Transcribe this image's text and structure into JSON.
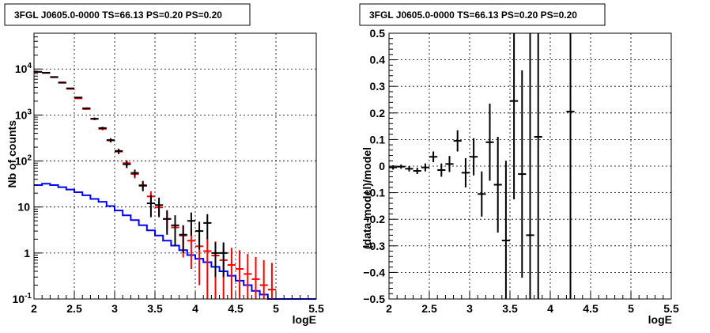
{
  "chart_data": [
    {
      "type": "scatter",
      "title": "3FGL J0605.0-0000 TS=66.13 PS=0.20 PS=0.20",
      "xlabel": "logE",
      "ylabel": "Nb of counts",
      "xlim": [
        2,
        5.5
      ],
      "ylim": [
        0.1,
        60000
      ],
      "yscale": "log",
      "grid": true,
      "x_ticks": [
        "2",
        "2.5",
        "3",
        "3.5",
        "4",
        "4.5",
        "5",
        "5.5"
      ],
      "y_ticks": [
        {
          "v": 0.1,
          "label": "10",
          "sup": "-1"
        },
        {
          "v": 1,
          "label": "1",
          "sup": ""
        },
        {
          "v": 10,
          "label": "10",
          "sup": ""
        },
        {
          "v": 100,
          "label": "10",
          "sup": "2"
        },
        {
          "v": 1000,
          "label": "10",
          "sup": "3"
        },
        {
          "v": 10000,
          "label": "10",
          "sup": "4"
        }
      ],
      "series": [
        {
          "kind": "steps",
          "color": "#0000ff",
          "bin_width": 0.1,
          "x": [
            2.05,
            2.15,
            2.25,
            2.35,
            2.45,
            2.55,
            2.65,
            2.75,
            2.85,
            2.95,
            3.05,
            3.15,
            3.25,
            3.35,
            3.45,
            3.55,
            3.65,
            3.75,
            3.85,
            3.95,
            4.05,
            4.15,
            4.25,
            4.35,
            4.45,
            4.55,
            4.65,
            4.75,
            4.85,
            4.95,
            5.05,
            5.15,
            5.25,
            5.35,
            5.45
          ],
          "y": [
            30,
            32,
            30,
            27,
            24,
            21,
            18,
            15,
            13,
            10.5,
            8.4,
            6.6,
            5.2,
            4.0,
            3.1,
            2.4,
            1.85,
            1.45,
            1.15,
            0.9,
            0.75,
            0.63,
            0.5,
            0.4,
            0.32,
            0.25,
            0.2,
            0.15,
            0.125,
            0.1,
            0.1,
            0.1,
            0.1,
            0.1,
            0.1
          ]
        },
        {
          "kind": "errorbars",
          "color": "#ff0000",
          "bin_width": 0.1,
          "x": [
            2.05,
            2.15,
            2.25,
            2.35,
            2.45,
            2.55,
            2.65,
            2.75,
            2.85,
            2.95,
            3.05,
            3.15,
            3.25,
            3.35,
            3.45,
            3.55,
            3.65,
            3.75,
            3.85,
            3.95,
            4.05,
            4.15,
            4.25,
            4.35,
            4.45,
            4.55,
            4.65,
            4.75,
            4.85,
            4.95
          ],
          "y": [
            8600,
            8200,
            6600,
            5000,
            3700,
            2300,
            1350,
            820,
            500,
            280,
            160,
            90,
            52,
            30,
            17,
            9.8,
            5.5,
            3.6,
            2.4,
            1.85,
            1.4,
            1.1,
            0.88,
            0.7,
            0.55,
            0.45,
            0.35,
            0.27,
            0.2,
            0.16
          ],
          "err": [
            180,
            170,
            150,
            120,
            110,
            80,
            60,
            50,
            35,
            28,
            20,
            14,
            10,
            7,
            5,
            3.3,
            2.4,
            2.0,
            1.6,
            1.4,
            1.2,
            1.05,
            0.9,
            0.85,
            0.75,
            0.7,
            0.6,
            0.55,
            0.5,
            0.45
          ]
        },
        {
          "kind": "errorbars",
          "color": "#000000",
          "bin_width": 0.1,
          "x": [
            2.05,
            2.15,
            2.25,
            2.35,
            2.45,
            2.55,
            2.65,
            2.75,
            2.85,
            2.95,
            3.05,
            3.15,
            3.25,
            3.35,
            3.45,
            3.55,
            3.65,
            3.75,
            3.85,
            3.95,
            4.05,
            4.15,
            4.25,
            4.35
          ],
          "y": [
            8700,
            8300,
            6700,
            5100,
            3800,
            2400,
            1400,
            830,
            520,
            285,
            165,
            85,
            55,
            29,
            12,
            11,
            5.5,
            4,
            2.5,
            5,
            3,
            4.5,
            1,
            1
          ],
          "err": [
            190,
            180,
            150,
            130,
            110,
            80,
            60,
            50,
            35,
            28,
            20,
            15,
            10,
            7,
            6,
            5,
            3,
            2.6,
            1.5,
            2.6,
            1.8,
            2.5,
            0.7,
            0.7
          ]
        }
      ]
    },
    {
      "type": "scatter",
      "title": "3FGL J0605.0-0000 TS=66.13 PS=0.20 PS=0.20",
      "xlabel": "logE",
      "ylabel": "(data-model)/model",
      "xlim": [
        2,
        5.5
      ],
      "ylim": [
        -0.5,
        0.5
      ],
      "grid": true,
      "x_ticks": [
        "2",
        "2.5",
        "3",
        "3.5",
        "4",
        "4.5",
        "5",
        "5.5"
      ],
      "y_ticks": [
        "-0.5",
        "-0.4",
        "-0.3",
        "-0.2",
        "-0.1",
        "0",
        "0.1",
        "0.2",
        "0.3",
        "0.4",
        "0.5"
      ],
      "series": [
        {
          "kind": "errorbars",
          "color": "#000000",
          "bin_width": 0.1,
          "x": [
            2.05,
            2.15,
            2.25,
            2.35,
            2.45,
            2.55,
            2.65,
            2.75,
            2.85,
            2.95,
            3.05,
            3.15,
            3.25,
            3.35,
            3.45,
            3.55,
            3.65,
            3.75,
            3.85,
            4.25
          ],
          "y": [
            -0.005,
            -0.002,
            -0.01,
            -0.018,
            -0.005,
            0.035,
            -0.015,
            0.008,
            0.095,
            -0.025,
            0.035,
            -0.105,
            0.09,
            -0.07,
            -0.28,
            0.245,
            -0.03,
            -0.26,
            0.11,
            0.205
          ],
          "err": [
            0.008,
            0.008,
            0.01,
            0.012,
            0.015,
            0.02,
            0.025,
            0.03,
            0.04,
            0.055,
            0.07,
            0.085,
            0.145,
            0.18,
            0.3,
            0.37,
            0.39,
            0.8,
            0.8,
            0.8
          ]
        }
      ]
    }
  ]
}
